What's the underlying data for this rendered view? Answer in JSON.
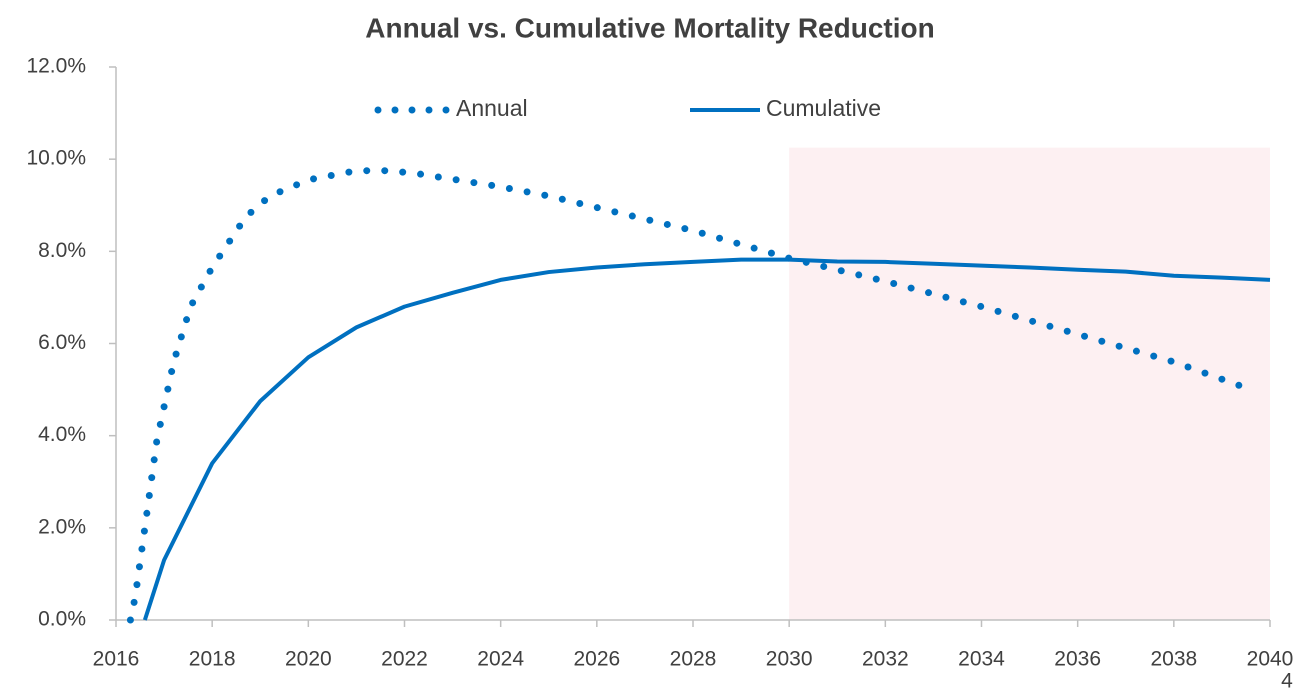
{
  "chart_data": {
    "type": "line",
    "title": "Annual vs. Cumulative Mortality Reduction",
    "xlim": [
      2016,
      2040
    ],
    "xticks": [
      2016,
      2018,
      2020,
      2022,
      2024,
      2026,
      2028,
      2030,
      2032,
      2034,
      2036,
      2038,
      2040
    ],
    "ylim": [
      0,
      12
    ],
    "yticks": [
      {
        "value": 0,
        "label": "0.0%"
      },
      {
        "value": 2,
        "label": "2.0%"
      },
      {
        "value": 4,
        "label": "4.0%"
      },
      {
        "value": 6,
        "label": "6.0%"
      },
      {
        "value": 8,
        "label": "8.0%"
      },
      {
        "value": 10,
        "label": "10.0%"
      },
      {
        "value": 12,
        "label": "12.0%"
      }
    ],
    "legend": "top",
    "highlight": {
      "x": [
        2030,
        2040
      ],
      "y": [
        0,
        10.25
      ],
      "color": "#fdf0f2"
    },
    "series": [
      {
        "name": "Annual",
        "color": "#0070c0",
        "style": "dotted",
        "x": [
          2016.3,
          2016.4,
          2016.6,
          2016.85,
          2017.2,
          2017.55,
          2018,
          2018.7,
          2019.2,
          2020,
          2021,
          2021.7,
          2022.3,
          2024,
          2025,
          2026,
          2028,
          2030,
          2032,
          2034,
          2036,
          2038,
          2039.6
        ],
        "values": [
          0,
          0.5,
          2.0,
          3.9,
          5.6,
          6.8,
          7.65,
          8.75,
          9.2,
          9.55,
          9.75,
          9.75,
          9.68,
          9.4,
          9.2,
          8.95,
          8.45,
          7.85,
          7.35,
          6.8,
          6.2,
          5.6,
          5.0
        ]
      },
      {
        "name": "Cumulative",
        "color": "#0070c0",
        "style": "solid",
        "x": [
          2016.6,
          2017,
          2018,
          2019,
          2020,
          2021,
          2022,
          2023,
          2024,
          2025,
          2026,
          2027,
          2028,
          2029,
          2030,
          2031,
          2032,
          2033,
          2034,
          2035,
          2036,
          2037,
          2038,
          2039,
          2040
        ],
        "values": [
          0,
          1.3,
          3.4,
          4.75,
          5.7,
          6.35,
          6.8,
          7.1,
          7.38,
          7.55,
          7.65,
          7.72,
          7.77,
          7.82,
          7.82,
          7.78,
          7.77,
          7.73,
          7.69,
          7.65,
          7.6,
          7.56,
          7.47,
          7.43,
          7.38
        ]
      }
    ]
  },
  "page_number": "4"
}
